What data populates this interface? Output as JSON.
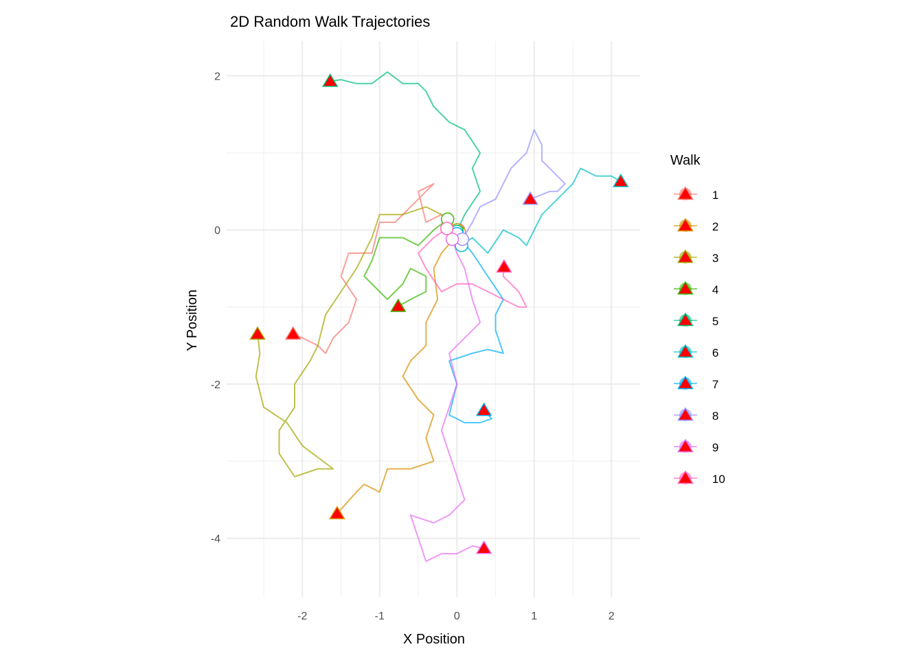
{
  "chart_data": {
    "type": "line",
    "title": "2D Random Walk Trajectories",
    "xlabel": "X Position",
    "ylabel": "Y Position",
    "xlim": [
      -2.98,
      2.37
    ],
    "ylim": [
      -4.76,
      2.45
    ],
    "xticks": [
      -2,
      -1,
      0,
      1,
      2
    ],
    "yticks": [
      -4,
      -2,
      0,
      2
    ],
    "grid": true,
    "legend_title": "Walk",
    "legend_position": "right",
    "end_marker_fill": "#FF0000",
    "series": [
      {
        "name": "1",
        "color": "#F8766D",
        "points": [
          [
            0.02,
            0
          ],
          [
            -0.2,
            0.2
          ],
          [
            -0.4,
            0.1
          ],
          [
            -0.5,
            0.5
          ],
          [
            -0.3,
            0.6
          ],
          [
            -0.6,
            0.3
          ],
          [
            -0.8,
            0.1
          ],
          [
            -1.0,
            0.1
          ],
          [
            -1.1,
            -0.3
          ],
          [
            -1.4,
            -0.3
          ],
          [
            -1.5,
            -0.6
          ],
          [
            -1.3,
            -0.9
          ],
          [
            -1.4,
            -1.2
          ],
          [
            -1.6,
            -1.4
          ],
          [
            -1.7,
            -1.6
          ],
          [
            -1.8,
            -1.5
          ],
          [
            -2.0,
            -1.4
          ],
          [
            -2.12,
            -1.35
          ]
        ]
      },
      {
        "name": "2",
        "color": "#D89000",
        "points": [
          [
            0.03,
            -0.03
          ],
          [
            -0.2,
            -0.3
          ],
          [
            -0.3,
            -0.5
          ],
          [
            -0.25,
            -0.9
          ],
          [
            -0.4,
            -1.2
          ],
          [
            -0.4,
            -1.5
          ],
          [
            -0.6,
            -1.7
          ],
          [
            -0.7,
            -1.9
          ],
          [
            -0.5,
            -2.2
          ],
          [
            -0.3,
            -2.4
          ],
          [
            -0.4,
            -2.7
          ],
          [
            -0.3,
            -3.0
          ],
          [
            -0.6,
            -3.1
          ],
          [
            -0.9,
            -3.1
          ],
          [
            -1.0,
            -3.4
          ],
          [
            -1.2,
            -3.3
          ],
          [
            -1.3,
            -3.4
          ],
          [
            -1.55,
            -3.68
          ]
        ]
      },
      {
        "name": "3",
        "color": "#A3A500",
        "points": [
          [
            0,
            0
          ],
          [
            -0.2,
            0.2
          ],
          [
            -0.4,
            0.3
          ],
          [
            -0.7,
            0.2
          ],
          [
            -1.0,
            0.2
          ],
          [
            -1.1,
            -0.1
          ],
          [
            -1.3,
            -0.5
          ],
          [
            -1.5,
            -0.8
          ],
          [
            -1.7,
            -1.1
          ],
          [
            -1.8,
            -1.5
          ],
          [
            -1.9,
            -1.7
          ],
          [
            -2.1,
            -2.0
          ],
          [
            -2.1,
            -2.3
          ],
          [
            -2.3,
            -2.6
          ],
          [
            -2.3,
            -2.9
          ],
          [
            -2.1,
            -3.2
          ],
          [
            -1.8,
            -3.1
          ],
          [
            -1.6,
            -3.1
          ],
          [
            -2.0,
            -2.8
          ],
          [
            -2.2,
            -2.5
          ],
          [
            -2.5,
            -2.3
          ],
          [
            -2.6,
            -1.9
          ],
          [
            -2.55,
            -1.6
          ],
          [
            -2.58,
            -1.35
          ]
        ]
      },
      {
        "name": "4",
        "color": "#39B600",
        "points": [
          [
            -0.12,
            0.14
          ],
          [
            -0.3,
            0.0
          ],
          [
            -0.5,
            -0.2
          ],
          [
            -0.7,
            -0.1
          ],
          [
            -1.0,
            -0.1
          ],
          [
            -1.1,
            -0.4
          ],
          [
            -1.2,
            -0.6
          ],
          [
            -1.0,
            -0.8
          ],
          [
            -0.9,
            -0.9
          ],
          [
            -0.7,
            -0.7
          ],
          [
            -0.6,
            -0.5
          ],
          [
            -0.4,
            -0.6
          ],
          [
            -0.4,
            -0.8
          ],
          [
            -0.6,
            -0.9
          ],
          [
            -0.76,
            -0.99
          ]
        ]
      },
      {
        "name": "5",
        "color": "#00BF7D",
        "points": [
          [
            0,
            -0.02
          ],
          [
            0.1,
            0.2
          ],
          [
            0.3,
            0.5
          ],
          [
            0.2,
            0.8
          ],
          [
            0.3,
            1.0
          ],
          [
            0.1,
            1.3
          ],
          [
            -0.1,
            1.4
          ],
          [
            -0.3,
            1.6
          ],
          [
            -0.4,
            1.8
          ],
          [
            -0.5,
            1.9
          ],
          [
            -0.7,
            1.9
          ],
          [
            -0.9,
            2.05
          ],
          [
            -1.1,
            1.9
          ],
          [
            -1.3,
            1.9
          ],
          [
            -1.5,
            1.95
          ],
          [
            -1.64,
            1.93
          ]
        ]
      },
      {
        "name": "6",
        "color": "#00BFC4",
        "points": [
          [
            0.06,
            -0.2
          ],
          [
            0.2,
            -0.1
          ],
          [
            0.4,
            -0.3
          ],
          [
            0.6,
            0.0
          ],
          [
            0.8,
            -0.1
          ],
          [
            0.9,
            -0.2
          ],
          [
            1.0,
            0.0
          ],
          [
            1.1,
            0.2
          ],
          [
            1.2,
            0.3
          ],
          [
            1.3,
            0.4
          ],
          [
            1.5,
            0.6
          ],
          [
            1.6,
            0.8
          ],
          [
            1.8,
            0.7
          ],
          [
            2.0,
            0.7
          ],
          [
            2.12,
            0.63
          ]
        ]
      },
      {
        "name": "7",
        "color": "#00B0F6",
        "points": [
          [
            0,
            -0.05
          ],
          [
            0.2,
            -0.3
          ],
          [
            0.4,
            -0.6
          ],
          [
            0.6,
            -0.9
          ],
          [
            0.5,
            -1.1
          ],
          [
            0.5,
            -1.3
          ],
          [
            0.6,
            -1.6
          ],
          [
            0.4,
            -1.55
          ],
          [
            0.2,
            -1.6
          ],
          [
            -0.1,
            -1.7
          ],
          [
            0.0,
            -2.0
          ],
          [
            -0.1,
            -2.4
          ],
          [
            0.1,
            -2.5
          ],
          [
            0.3,
            -2.5
          ],
          [
            0.45,
            -2.45
          ],
          [
            0.35,
            -2.34
          ]
        ]
      },
      {
        "name": "8",
        "color": "#9590FF",
        "points": [
          [
            0.07,
            -0.12
          ],
          [
            0.2,
            0.1
          ],
          [
            0.3,
            0.3
          ],
          [
            0.5,
            0.4
          ],
          [
            0.6,
            0.6
          ],
          [
            0.7,
            0.8
          ],
          [
            0.8,
            0.9
          ],
          [
            0.9,
            1.0
          ],
          [
            1.0,
            1.3
          ],
          [
            1.1,
            1.1
          ],
          [
            1.1,
            0.9
          ],
          [
            1.3,
            0.7
          ],
          [
            1.4,
            0.6
          ],
          [
            1.3,
            0.5
          ],
          [
            1.2,
            0.5
          ],
          [
            0.95,
            0.4
          ]
        ]
      },
      {
        "name": "9",
        "color": "#E76BF3",
        "points": [
          [
            -0.06,
            -0.12
          ],
          [
            0.0,
            -0.3
          ],
          [
            0.1,
            -0.5
          ],
          [
            0.2,
            -0.9
          ],
          [
            0.3,
            -1.2
          ],
          [
            0.1,
            -1.4
          ],
          [
            -0.1,
            -1.6
          ],
          [
            0.0,
            -2.0
          ],
          [
            -0.1,
            -2.3
          ],
          [
            -0.2,
            -2.6
          ],
          [
            -0.1,
            -2.9
          ],
          [
            0.0,
            -3.2
          ],
          [
            0.1,
            -3.5
          ],
          [
            -0.1,
            -3.7
          ],
          [
            -0.3,
            -3.8
          ],
          [
            -0.6,
            -3.7
          ],
          [
            -0.5,
            -4.0
          ],
          [
            -0.4,
            -4.3
          ],
          [
            -0.2,
            -4.2
          ],
          [
            0.0,
            -4.2
          ],
          [
            0.2,
            -4.1
          ],
          [
            0.35,
            -4.13
          ]
        ]
      },
      {
        "name": "10",
        "color": "#FF62BC",
        "points": [
          [
            -0.13,
            0.02
          ],
          [
            -0.3,
            -0.1
          ],
          [
            -0.5,
            -0.3
          ],
          [
            -0.4,
            -0.5
          ],
          [
            -0.2,
            -0.8
          ],
          [
            0.0,
            -0.7
          ],
          [
            0.2,
            -0.7
          ],
          [
            0.4,
            -0.8
          ],
          [
            0.6,
            -0.9
          ],
          [
            0.8,
            -1.0
          ],
          [
            0.9,
            -1.0
          ],
          [
            0.8,
            -0.8
          ],
          [
            0.7,
            -0.7
          ],
          [
            0.6,
            -0.6
          ],
          [
            0.61,
            -0.48
          ]
        ]
      }
    ]
  }
}
